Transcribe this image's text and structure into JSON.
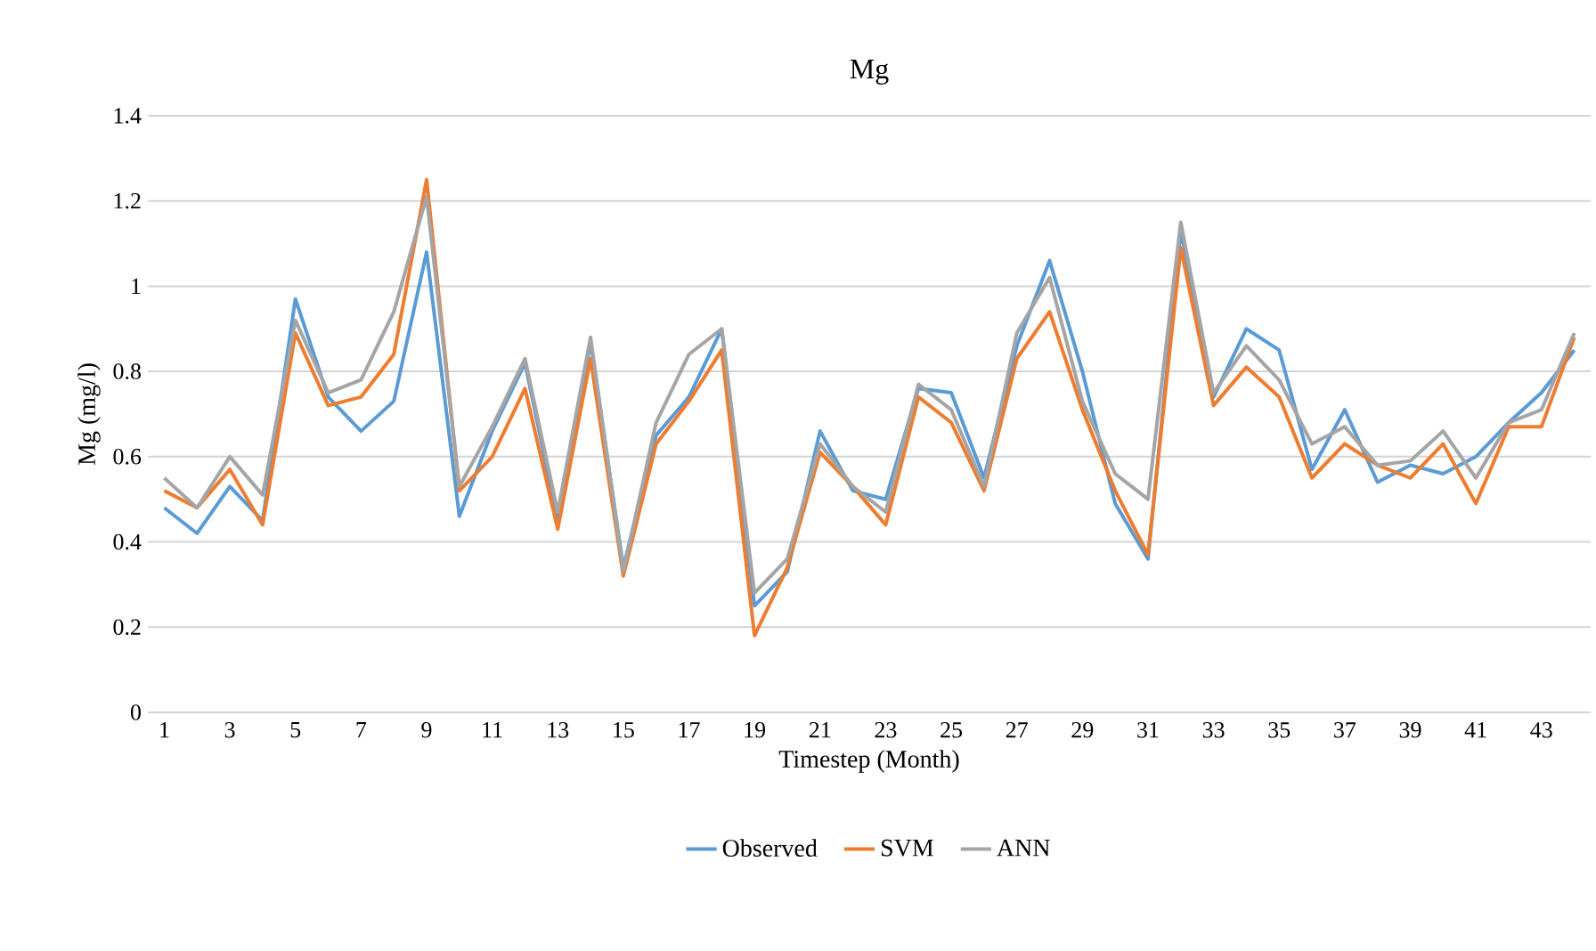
{
  "chart_data": {
    "type": "line",
    "title": "Mg",
    "xlabel": "Timestep (Month)",
    "ylabel": "Mg (mg/l)",
    "categories": [
      "1",
      null,
      "3",
      null,
      "5",
      null,
      "7",
      null,
      "9",
      null,
      "11",
      null,
      "13",
      null,
      "15",
      null,
      "17",
      null,
      "19",
      null,
      "21",
      null,
      "23",
      null,
      "25",
      null,
      "27",
      null,
      "29",
      null,
      "31",
      null,
      "33",
      null,
      "35",
      null,
      "37",
      null,
      "39",
      null,
      "41",
      null,
      "43",
      null
    ],
    "ylim": [
      0,
      1.4
    ],
    "yticks": [
      0,
      0.2,
      0.4,
      0.6,
      0.8,
      1,
      1.2,
      1.4
    ],
    "grid": "y",
    "legend": "bottom",
    "marker": "none",
    "line_style": "solid",
    "series": [
      {
        "name": "Observed",
        "color": "#5b9bd5",
        "values": [
          0.48,
          0.42,
          0.53,
          0.45,
          0.97,
          0.74,
          0.66,
          0.73,
          1.08,
          0.46,
          0.66,
          0.82,
          0.45,
          0.87,
          0.34,
          0.65,
          0.74,
          0.9,
          0.25,
          0.33,
          0.66,
          0.52,
          0.5,
          0.76,
          0.75,
          0.55,
          0.86,
          1.06,
          0.8,
          0.49,
          0.36,
          1.13,
          0.74,
          0.9,
          0.85,
          0.57,
          0.71,
          0.54,
          0.58,
          0.56,
          0.6,
          0.68,
          0.75,
          0.85
        ]
      },
      {
        "name": "SVM",
        "color": "#ed7d31",
        "values": [
          0.52,
          0.48,
          0.57,
          0.44,
          0.89,
          0.72,
          0.74,
          0.84,
          1.25,
          0.52,
          0.6,
          0.76,
          0.43,
          0.83,
          0.32,
          0.63,
          0.73,
          0.85,
          0.18,
          0.34,
          0.61,
          0.53,
          0.44,
          0.74,
          0.68,
          0.52,
          0.83,
          0.94,
          0.71,
          0.52,
          0.37,
          1.09,
          0.72,
          0.81,
          0.74,
          0.55,
          0.63,
          0.58,
          0.55,
          0.63,
          0.49,
          0.67,
          0.67,
          0.88
        ]
      },
      {
        "name": "ANN",
        "color": "#a5a5a5",
        "values": [
          0.55,
          0.48,
          0.6,
          0.51,
          0.92,
          0.75,
          0.78,
          0.94,
          1.21,
          0.53,
          0.67,
          0.83,
          0.47,
          0.88,
          0.33,
          0.68,
          0.84,
          0.9,
          0.28,
          0.36,
          0.63,
          0.53,
          0.47,
          0.77,
          0.71,
          0.53,
          0.89,
          1.02,
          0.73,
          0.56,
          0.5,
          1.15,
          0.75,
          0.86,
          0.78,
          0.63,
          0.67,
          0.58,
          0.59,
          0.66,
          0.55,
          0.68,
          0.71,
          0.89
        ]
      }
    ]
  }
}
